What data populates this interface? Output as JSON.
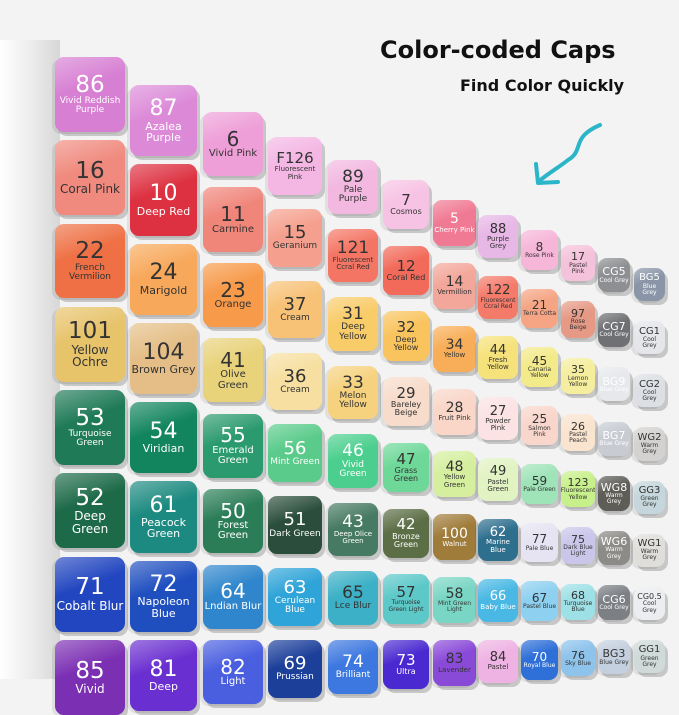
{
  "headline": "Color-coded Caps",
  "subheadline": "Find Color Quickly",
  "accent_color": "#2bb5c8",
  "rows": [
    [
      [
        "86",
        "Vivid Reddish Purple",
        "#d77fd3",
        1
      ],
      [
        "87",
        "Azalea Purple",
        "#dc8ad8",
        1
      ],
      [
        "6",
        "Vivid Pink",
        "#ee9fd8",
        0
      ],
      [
        "F126",
        "Fluorescent Pink",
        "#f4b7e4",
        0
      ],
      [
        "89",
        "Pale Purple",
        "#f2b8e0",
        0
      ],
      [
        "7",
        "Cosmos",
        "#f7c3e4",
        0
      ],
      [
        "5",
        "Cherry Pink",
        "#f07a94",
        1
      ],
      [
        "88",
        "Purple Grey",
        "#e7b7e6",
        0
      ],
      [
        "8",
        "Rose Pink",
        "#f6b6d8",
        0
      ],
      [
        "17",
        "Pastel Pink",
        "#f4c2da",
        0
      ],
      [
        "CG5",
        "Cool Grey",
        "#8e8f92",
        1
      ],
      [
        "BG5",
        "Blue Grey",
        "#8a96a8",
        1
      ]
    ],
    [
      [
        "16",
        "Coral Pink",
        "#f08a7e",
        0
      ],
      [
        "10",
        "Deep Red",
        "#dd3040",
        1
      ],
      [
        "11",
        "Carmine",
        "#f0857a",
        0
      ],
      [
        "15",
        "Geranium",
        "#f5a08e",
        0
      ],
      [
        "121",
        "Fluorescent Ccral Red",
        "#f47564",
        0
      ],
      [
        "12",
        "Coral Red",
        "#f26a5a",
        0
      ],
      [
        "14",
        "Vermillion",
        "#f3a69a",
        0
      ],
      [
        "122",
        "Fluorescent Ccral Red",
        "#f47a6a",
        0
      ],
      [
        "21",
        "Terra Cotta",
        "#f5a584",
        0
      ],
      [
        "97",
        "Rose Beige",
        "#e69a86",
        0
      ],
      [
        "CG7",
        "Cool Grey",
        "#6f7073",
        1
      ],
      [
        "CG1",
        "Cool Grey",
        "#e4e6ea",
        0
      ]
    ],
    [
      [
        "22",
        "French Vermilion",
        "#ee7044",
        0
      ],
      [
        "24",
        "Marigold",
        "#f7a85a",
        0
      ],
      [
        "23",
        "Orange",
        "#f79a4a",
        0
      ],
      [
        "37",
        "Cream",
        "#f7c176",
        0
      ],
      [
        "31",
        "Deep Yellow",
        "#f9cc6a",
        0
      ],
      [
        "32",
        "Deep Yellow",
        "#f9c45e",
        0
      ],
      [
        "34",
        "Yellow",
        "#f8ae58",
        0
      ],
      [
        "44",
        "Fresh Yellow",
        "#f6e27a",
        0
      ],
      [
        "45",
        "Canaria Yellow",
        "#f3ea8a",
        0
      ],
      [
        "35",
        "Lemon Yellow",
        "#f5ee9e",
        0
      ],
      [
        "BG9",
        "Blue Grey",
        "#e6e8ec",
        1
      ],
      [
        "CG2",
        "Cool Grey",
        "#dcdfe3",
        0
      ]
    ],
    [
      [
        "101",
        "Yellow Ochre",
        "#e7c36a",
        0
      ],
      [
        "104",
        "Brown Grey",
        "#e4be86",
        0
      ],
      [
        "41",
        "Olive Green",
        "#e8d27a",
        0
      ],
      [
        "36",
        "Cream",
        "#f6dfa0",
        0
      ],
      [
        "33",
        "Melon Yellow",
        "#f6d27e",
        0
      ],
      [
        "29",
        "Bareley Beige",
        "#f7dccb",
        0
      ],
      [
        "28",
        "Fruit Pink",
        "#f9d6c8",
        0
      ],
      [
        "27",
        "Powder Pink",
        "#fbe3e3",
        0
      ],
      [
        "25",
        "Salmon Pink",
        "#f8d6cc",
        0
      ],
      [
        "26",
        "Pastel Peach",
        "#f9e4cf",
        0
      ],
      [
        "BG7",
        "Blue Grey",
        "#c8ccd2",
        1
      ],
      [
        "WG2",
        "Warm Grey",
        "#d3d2d0",
        0
      ]
    ],
    [
      [
        "53",
        "Turquoise Green",
        "#1f7a58",
        1
      ],
      [
        "54",
        "Viridian",
        "#12855e",
        1
      ],
      [
        "55",
        "Emerald Green",
        "#2b9a6e",
        1
      ],
      [
        "56",
        "Mint Green",
        "#5acb8a",
        1
      ],
      [
        "46",
        "Vivid Green",
        "#4ccf8e",
        1
      ],
      [
        "47",
        "Grass Green",
        "#6ed899",
        0
      ],
      [
        "48",
        "Yellow Green",
        "#d5ef9f",
        0
      ],
      [
        "49",
        "Pastel Green",
        "#e1f3c3",
        0
      ],
      [
        "59",
        "Pale Green",
        "#9fe3b8",
        0
      ],
      [
        "123",
        "Fluorescent Yellow",
        "#c7f08a",
        0
      ],
      [
        "WG8",
        "Warm Grey",
        "#5e5d58",
        1
      ],
      [
        "GG3",
        "Green Grey",
        "#c5d7dc",
        0
      ]
    ],
    [
      [
        "52",
        "Deep Green",
        "#1d6a48",
        1
      ],
      [
        "61",
        "Peacock Green",
        "#1c8a80",
        1
      ],
      [
        "50",
        "Forest Green",
        "#2a7d56",
        1
      ],
      [
        "51",
        "Dark Green",
        "#2b4e3c",
        1
      ],
      [
        "43",
        "Deep Olice Green",
        "#477a62",
        1
      ],
      [
        "42",
        "Bronze Green",
        "#5b6e45",
        1
      ],
      [
        "100",
        "Walnut",
        "#a07c3a",
        1
      ],
      [
        "62",
        "Marine Blue",
        "#2f6f8e",
        1
      ],
      [
        "77",
        "Pale Blue",
        "#e6e3f2",
        0
      ],
      [
        "75",
        "Dark Blue Light",
        "#c9c6ea",
        0
      ],
      [
        "WG6",
        "Warm Grey",
        "#8d8b87",
        1
      ],
      [
        "WG1",
        "Warm Grey",
        "#dfdedb",
        0
      ]
    ],
    [
      [
        "71",
        "Cobalt Blur",
        "#2246c0",
        1
      ],
      [
        "72",
        "Napoleon Blue",
        "#1f4fbf",
        1
      ],
      [
        "64",
        "Lndian Blur",
        "#2f86cc",
        1
      ],
      [
        "63",
        "Cerulean Blue",
        "#2fa4d8",
        1
      ],
      [
        "65",
        "Lce Blur",
        "#3cb0c6",
        0
      ],
      [
        "57",
        "Turquoise Green Light",
        "#5cc8c8",
        0
      ],
      [
        "58",
        "Mint Green Light",
        "#7ad6c4",
        0
      ],
      [
        "66",
        "Baby Blue",
        "#49b8e4",
        1
      ],
      [
        "67",
        "Pastel Blue",
        "#8dd0f0",
        0
      ],
      [
        "68",
        "Turquoise Blue",
        "#9de0e6",
        0
      ],
      [
        "CG6",
        "Cool Grey",
        "#7c7f84",
        1
      ],
      [
        "CG0.5",
        "Cool Grey",
        "#ebedf0",
        0
      ]
    ],
    [
      [
        "85",
        "Vivid",
        "#7b2fb3",
        1
      ],
      [
        "81",
        "Deep",
        "#6a2fd0",
        1
      ],
      [
        "82",
        "Light",
        "#4a5fe0",
        1
      ],
      [
        "69",
        "Prussian",
        "#1c3f9a",
        1
      ],
      [
        "74",
        "Brilliant",
        "#3d78e0",
        1
      ],
      [
        "73",
        "Ultra",
        "#4a2ad0",
        1
      ],
      [
        "83",
        "Lavender",
        "#8a4ad8",
        0
      ],
      [
        "84",
        "Pastel",
        "#efb3e3",
        0
      ],
      [
        "70",
        "Royal Blue",
        "#2e6fd8",
        1
      ],
      [
        "76",
        "Sky Blue",
        "#8ec3ec",
        0
      ],
      [
        "BG3",
        "Blue Grey",
        "#c4d0df",
        0
      ],
      [
        "GG1",
        "Green Grey",
        "#cfdad9",
        0
      ]
    ]
  ]
}
